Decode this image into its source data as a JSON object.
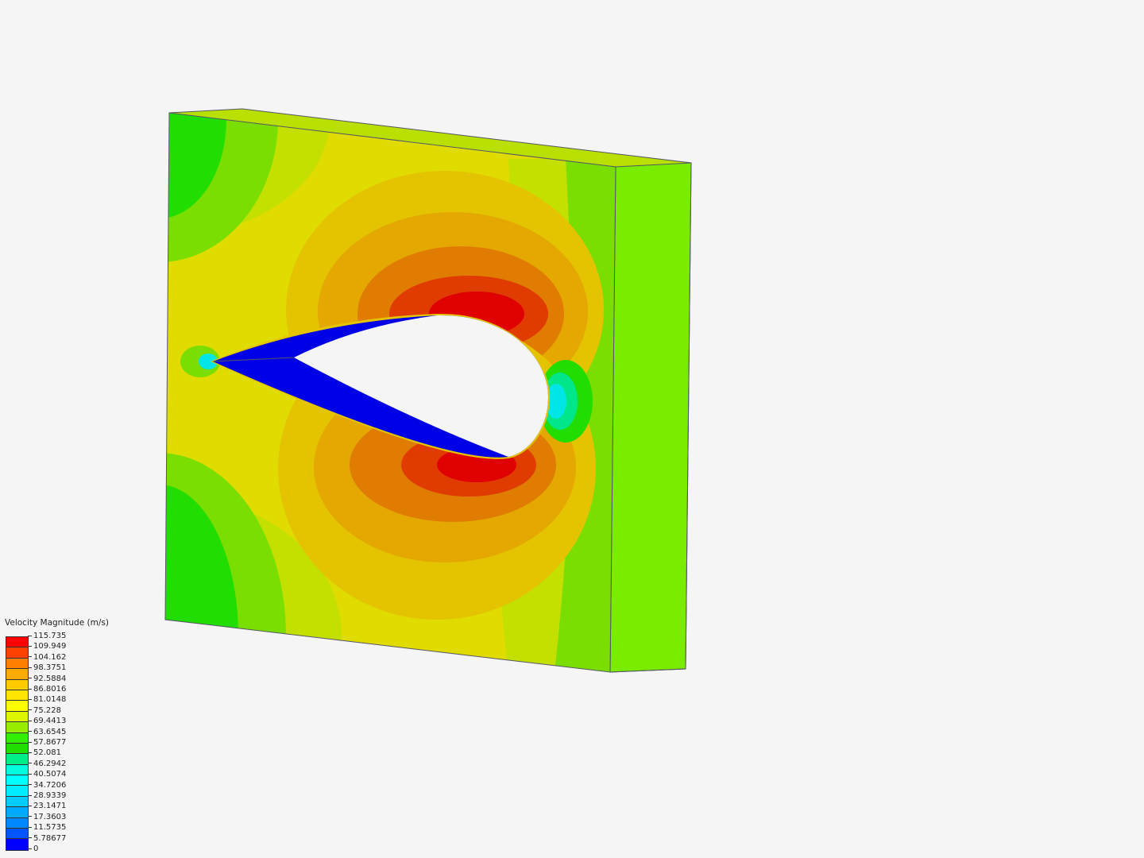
{
  "legend": {
    "title": "Velocity Magnitude (m/s)",
    "labels": [
      "115.735",
      "109.949",
      "104.162",
      "98.3751",
      "92.5884",
      "86.8016",
      "81.0148",
      "75.228",
      "69.4413",
      "63.6545",
      "57.8677",
      "52.081",
      "46.2942",
      "40.5074",
      "34.7206",
      "28.9339",
      "23.1471",
      "17.3603",
      "11.5735",
      "5.78677",
      "0"
    ],
    "colors": [
      "#ff0000",
      "#ff4000",
      "#ff7f00",
      "#ffaa00",
      "#ffcc00",
      "#ffe500",
      "#ffff00",
      "#ddf500",
      "#99ee00",
      "#33ee00",
      "#22dd00",
      "#00ee88",
      "#00ffdd",
      "#00ffff",
      "#00eeff",
      "#00ccff",
      "#00aaff",
      "#0088ff",
      "#0055ff",
      "#0000ff"
    ]
  },
  "scene": {
    "colors": {
      "red": "#e00000",
      "red_orange": "#e03c00",
      "orange": "#e07c00",
      "amber": "#e4a800",
      "gold": "#e4c400",
      "yellow": "#e0dc00",
      "yellow_green": "#c4e000",
      "light_green": "#7ade00",
      "green": "#22dd00",
      "blue": "#0000e6",
      "cyan": "#00e6e6",
      "hole": "#f5f5f5",
      "edge": "#555566"
    }
  }
}
